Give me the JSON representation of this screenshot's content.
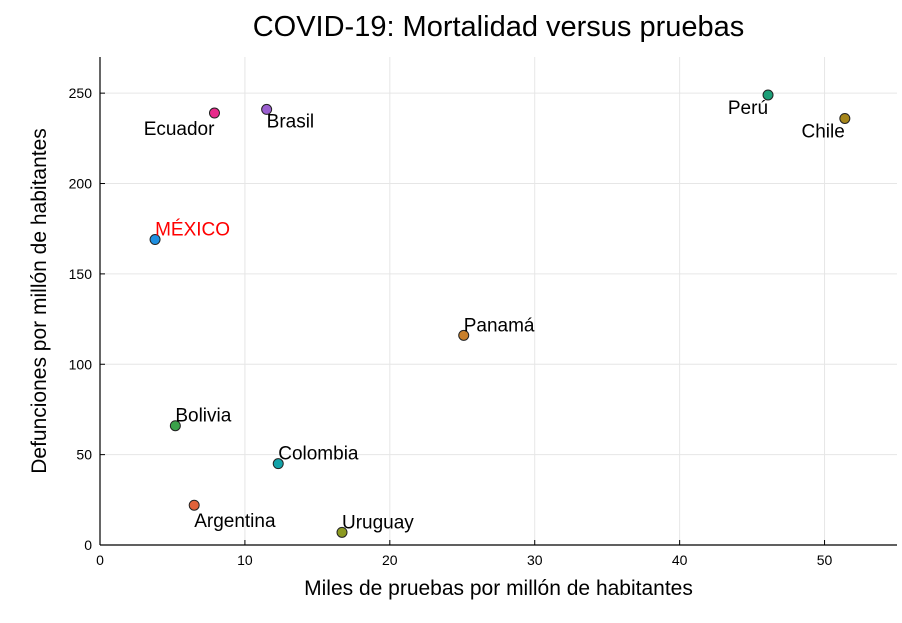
{
  "chart_data": {
    "type": "scatter",
    "title": "COVID-19: Mortalidad versus pruebas",
    "xlabel": "Miles de pruebas por millón de habitantes",
    "ylabel": "Defunciones por millón de habitantes",
    "xlim": [
      0,
      55
    ],
    "ylim": [
      0,
      270
    ],
    "xticks": [
      0,
      10,
      20,
      30,
      40,
      50
    ],
    "yticks": [
      0,
      50,
      100,
      150,
      200,
      250
    ],
    "grid": true,
    "points": [
      {
        "label": "Ecuador",
        "x": 7.9,
        "y": 239,
        "color": "#e7298a",
        "label_color": "#000000",
        "anchor": "end",
        "dx": 0,
        "dy": 22
      },
      {
        "label": "Brasil",
        "x": 11.5,
        "y": 241,
        "color": "#9b5fd0",
        "label_color": "#000000",
        "anchor": "start",
        "dx": 0,
        "dy": 18
      },
      {
        "label": "Perú",
        "x": 46.1,
        "y": 249,
        "color": "#1b9e77",
        "label_color": "#000000",
        "anchor": "end",
        "dx": 0,
        "dy": 19
      },
      {
        "label": "Chile",
        "x": 51.4,
        "y": 236,
        "color": "#a6861a",
        "label_color": "#000000",
        "anchor": "end",
        "dx": 0,
        "dy": 19
      },
      {
        "label": "MÉXICO",
        "x": 3.8,
        "y": 169,
        "color": "#1f8fe0",
        "label_color": "#ff0000",
        "anchor": "start",
        "dx": 0,
        "dy": -4
      },
      {
        "label": "Panamá",
        "x": 25.1,
        "y": 116,
        "color": "#c87f2a",
        "label_color": "#000000",
        "anchor": "start",
        "dx": 0,
        "dy": -4
      },
      {
        "label": "Bolivia",
        "x": 5.2,
        "y": 66,
        "color": "#3aa14a",
        "label_color": "#000000",
        "anchor": "start",
        "dx": 0,
        "dy": -4
      },
      {
        "label": "Colombia",
        "x": 12.3,
        "y": 45,
        "color": "#12a2a8",
        "label_color": "#000000",
        "anchor": "start",
        "dx": 0,
        "dy": -4
      },
      {
        "label": "Argentina",
        "x": 6.5,
        "y": 22,
        "color": "#e0623a",
        "label_color": "#000000",
        "anchor": "start",
        "dx": 0,
        "dy": 22
      },
      {
        "label": "Uruguay",
        "x": 16.7,
        "y": 7,
        "color": "#8c9a21",
        "label_color": "#000000",
        "anchor": "start",
        "dx": 0,
        "dy": -4
      }
    ]
  }
}
